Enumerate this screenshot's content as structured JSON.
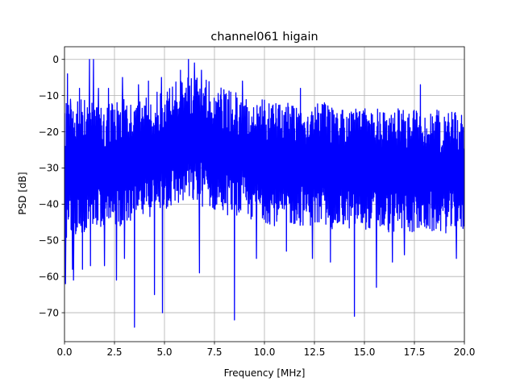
{
  "chart_data": {
    "type": "line",
    "title": "channel061 higain",
    "xlabel": "Frequency [MHz]",
    "ylabel": "PSD [dB]",
    "xlim": [
      0,
      20
    ],
    "ylim": [
      -78,
      3.5
    ],
    "x_ticks": [
      0,
      2.5,
      5,
      7.5,
      10,
      12.5,
      15,
      17.5,
      20
    ],
    "x_tick_labels": [
      "0.0",
      "2.5",
      "5.0",
      "7.5",
      "10.0",
      "12.5",
      "15.0",
      "17.5",
      "20.0"
    ],
    "y_ticks": [
      0,
      -10,
      -20,
      -30,
      -40,
      -50,
      -60,
      -70
    ],
    "y_tick_labels": [
      "0",
      "−10",
      "−20",
      "−30",
      "−40",
      "−50",
      "−60",
      "−70"
    ],
    "grid": true,
    "series": [
      {
        "color": "#0000ff",
        "envelope": {
          "x": [
            0,
            0.5,
            1,
            1.5,
            2,
            2.5,
            3,
            3.5,
            4,
            4.5,
            5,
            5.5,
            6,
            6.5,
            7,
            7.5,
            8,
            8.5,
            9,
            9.5,
            10,
            10.5,
            11,
            11.5,
            12,
            12.5,
            13,
            13.5,
            14,
            14.5,
            15,
            15.5,
            16,
            16.5,
            17,
            17.5,
            18,
            18.5,
            19,
            19.5,
            20
          ],
          "upper": [
            -10,
            -12,
            -8,
            -12,
            -13,
            -11,
            -11,
            -12,
            -10,
            -9,
            -8,
            -6,
            -5,
            -4,
            -5,
            -7,
            -8,
            -9,
            -10,
            -11,
            -11,
            -12,
            -11,
            -11,
            -12,
            -12,
            -12,
            -13,
            -13,
            -13,
            -13,
            -13,
            -14,
            -14,
            -13,
            -13,
            -14,
            -14,
            -14,
            -14,
            -14
          ],
          "lower": [
            -50,
            -49,
            -48,
            -47,
            -47,
            -46,
            -46,
            -45,
            -44,
            -43,
            -42,
            -41,
            -40,
            -40,
            -41,
            -42,
            -43,
            -43,
            -44,
            -45,
            -45,
            -46,
            -46,
            -46,
            -46,
            -46,
            -47,
            -47,
            -47,
            -47,
            -47,
            -47,
            -48,
            -48,
            -48,
            -48,
            -48,
            -48,
            -48,
            -48,
            -48
          ]
        },
        "peaks": [
          {
            "x": 0.15,
            "y": -4
          },
          {
            "x": 0.3,
            "y": -11
          },
          {
            "x": 0.45,
            "y": -2
          },
          {
            "x": 0.75,
            "y": -8
          },
          {
            "x": 0.9,
            "y": -5
          },
          {
            "x": 1.25,
            "y": 0
          },
          {
            "x": 1.45,
            "y": 0
          },
          {
            "x": 1.7,
            "y": -8
          },
          {
            "x": 2.2,
            "y": -8
          },
          {
            "x": 2.9,
            "y": -5
          },
          {
            "x": 3.7,
            "y": -7
          },
          {
            "x": 4.2,
            "y": -6
          },
          {
            "x": 4.85,
            "y": -5
          },
          {
            "x": 5.8,
            "y": -3
          },
          {
            "x": 6.2,
            "y": 0
          },
          {
            "x": 6.5,
            "y": -1
          },
          {
            "x": 6.85,
            "y": -3
          },
          {
            "x": 8.9,
            "y": -6
          },
          {
            "x": 11.8,
            "y": -8
          },
          {
            "x": 17.8,
            "y": -7
          },
          {
            "x": 19.6,
            "y": -6
          }
        ],
        "dips": [
          {
            "x": 0.05,
            "y": -62
          },
          {
            "x": 0.4,
            "y": -58
          },
          {
            "x": 0.45,
            "y": -61
          },
          {
            "x": 0.9,
            "y": -58
          },
          {
            "x": 1.3,
            "y": -57
          },
          {
            "x": 2.0,
            "y": -57
          },
          {
            "x": 2.6,
            "y": -61
          },
          {
            "x": 3.0,
            "y": -55
          },
          {
            "x": 3.5,
            "y": -74
          },
          {
            "x": 4.5,
            "y": -65
          },
          {
            "x": 4.9,
            "y": -70
          },
          {
            "x": 6.75,
            "y": -59
          },
          {
            "x": 8.5,
            "y": -72
          },
          {
            "x": 9.6,
            "y": -55
          },
          {
            "x": 11.1,
            "y": -53
          },
          {
            "x": 12.4,
            "y": -55
          },
          {
            "x": 13.3,
            "y": -56
          },
          {
            "x": 14.5,
            "y": -71
          },
          {
            "x": 15.6,
            "y": -63
          },
          {
            "x": 16.4,
            "y": -56
          },
          {
            "x": 17.0,
            "y": -54
          },
          {
            "x": 19.6,
            "y": -55
          }
        ]
      }
    ]
  }
}
